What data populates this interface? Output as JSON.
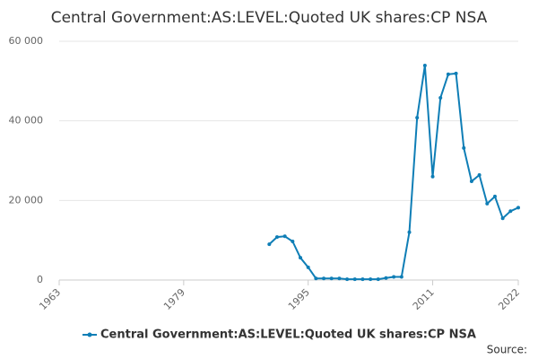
{
  "chart_data": {
    "type": "line",
    "title": "Central Government:AS:LEVEL:Quoted UK shares:CP NSA",
    "source": "Source:",
    "x": [
      1990,
      1991,
      1992,
      1993,
      1994,
      1995,
      1996,
      1997,
      1998,
      1999,
      2000,
      2001,
      2002,
      2003,
      2004,
      2005,
      2006,
      2007,
      2008,
      2009,
      2010,
      2011,
      2012,
      2013,
      2014,
      2015,
      2016,
      2017,
      2018,
      2019,
      2020,
      2021,
      2022
    ],
    "series": [
      {
        "name": "Central Government:AS:LEVEL:Quoted UK shares:CP NSA",
        "color": "#0f7eb6",
        "values": [
          9000,
          10800,
          11000,
          9700,
          5600,
          3200,
          400,
          400,
          400,
          400,
          200,
          200,
          200,
          200,
          200,
          500,
          800,
          800,
          12000,
          40800,
          53900,
          26000,
          45800,
          51700,
          51900,
          33200,
          24800,
          26400,
          19200,
          21000,
          15500,
          17300,
          18200
        ]
      }
    ],
    "xlim": [
      1963,
      2022
    ],
    "xticks": [
      1963,
      1979,
      1995,
      2011,
      2022
    ],
    "ylim": [
      0,
      60000
    ],
    "yticks": [
      0,
      {
        "value": 20000,
        "label": "20 000"
      },
      {
        "value": 40000,
        "label": "40 000"
      },
      {
        "value": 60000,
        "label": "60 000"
      }
    ],
    "grid": true,
    "legend": "bottom"
  }
}
